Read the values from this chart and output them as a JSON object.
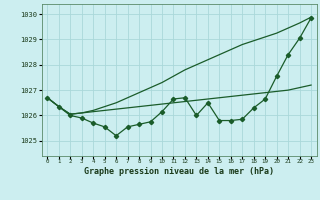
{
  "title": "Graphe pression niveau de la mer (hPa)",
  "bg_color": "#cceef0",
  "grid_color": "#aad8da",
  "line_color": "#1a5c2a",
  "xlim": [
    -0.5,
    23.5
  ],
  "ylim": [
    1024.4,
    1030.4
  ],
  "yticks": [
    1025,
    1026,
    1027,
    1028,
    1029,
    1030
  ],
  "xticks": [
    0,
    1,
    2,
    3,
    4,
    5,
    6,
    7,
    8,
    9,
    10,
    11,
    12,
    13,
    14,
    15,
    16,
    17,
    18,
    19,
    20,
    21,
    22,
    23
  ],
  "hours": [
    0,
    1,
    2,
    3,
    4,
    5,
    6,
    7,
    8,
    9,
    10,
    11,
    12,
    13,
    14,
    15,
    16,
    17,
    18,
    19,
    20,
    21,
    22,
    23
  ],
  "line_jagged": [
    1026.7,
    1026.35,
    1026.0,
    1025.9,
    1025.7,
    1025.55,
    1025.2,
    1025.55,
    1025.65,
    1025.75,
    1026.15,
    1026.65,
    1026.7,
    1026.0,
    1026.5,
    1025.8,
    1025.8,
    1025.85,
    1026.3,
    1026.65,
    1027.55,
    1028.4,
    1029.05,
    1029.85
  ],
  "line_low_trend": [
    1026.7,
    1026.35,
    1026.05,
    1026.1,
    1026.15,
    1026.2,
    1026.25,
    1026.3,
    1026.35,
    1026.4,
    1026.45,
    1026.5,
    1026.55,
    1026.6,
    1026.65,
    1026.7,
    1026.75,
    1026.8,
    1026.85,
    1026.9,
    1026.95,
    1027.0,
    1027.1,
    1027.2
  ],
  "line_high_trend": [
    1026.7,
    1026.35,
    1026.05,
    1026.1,
    1026.2,
    1026.35,
    1026.5,
    1026.7,
    1026.9,
    1027.1,
    1027.3,
    1027.55,
    1027.8,
    1028.0,
    1028.2,
    1028.4,
    1028.6,
    1028.8,
    1028.95,
    1029.1,
    1029.25,
    1029.45,
    1029.65,
    1029.88
  ]
}
